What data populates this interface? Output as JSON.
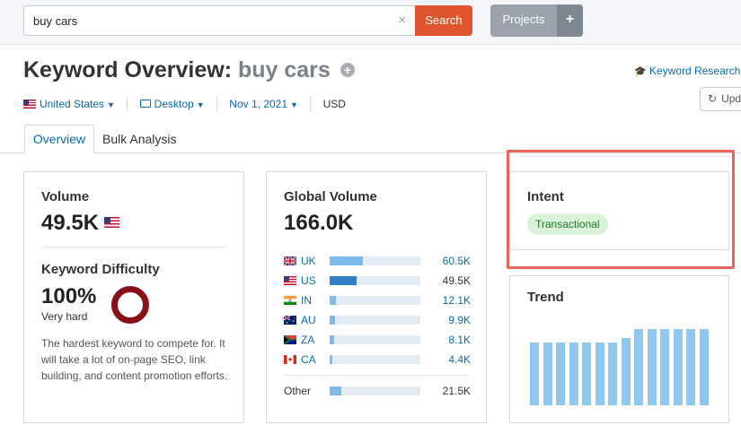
{
  "search": {
    "value": "buy cars",
    "placeholder": "",
    "clear_icon": "×",
    "button": "Search"
  },
  "projects": {
    "label": "Projects",
    "plus": "+"
  },
  "header": {
    "title": "Keyword Overview:",
    "keyword": "buy cars",
    "add_icon": "+",
    "kr_link": "Keyword Research",
    "update_label": "Upd"
  },
  "filters": {
    "country": "United States",
    "device": "Desktop",
    "date": "Nov 1, 2021",
    "currency": "USD"
  },
  "tabs": [
    {
      "label": "Overview",
      "active": true
    },
    {
      "label": "Bulk Analysis",
      "active": false
    }
  ],
  "volume": {
    "title": "Volume",
    "value": "49.5K"
  },
  "difficulty": {
    "title": "Keyword Difficulty",
    "value": "100%",
    "label": "Very hard",
    "level": 100,
    "color": "#8b0f16",
    "description": "The hardest keyword to compete for. It will take a lot of on-page SEO, link building, and content promotion efforts."
  },
  "global_volume": {
    "title": "Global Volume",
    "value": "166.0K",
    "countries": [
      {
        "code": "UK",
        "value": "60.5K",
        "share": 0.37
      },
      {
        "code": "US",
        "value": "49.5K",
        "share": 0.3
      },
      {
        "code": "IN",
        "value": "12.1K",
        "share": 0.07
      },
      {
        "code": "AU",
        "value": "9.9K",
        "share": 0.06
      },
      {
        "code": "ZA",
        "value": "8.1K",
        "share": 0.05
      },
      {
        "code": "CA",
        "value": "4.4K",
        "share": 0.03
      }
    ],
    "other": {
      "label": "Other",
      "value": "21.5K",
      "share": 0.13
    }
  },
  "intent": {
    "title": "Intent",
    "badge": "Transactional",
    "badge_color": "#d9f2d8"
  },
  "trend": {
    "title": "Trend",
    "values": [
      0.82,
      0.82,
      0.82,
      0.82,
      0.82,
      0.82,
      0.82,
      0.88,
      1.0,
      1.0,
      1.0,
      1.0,
      1.0,
      1.0
    ]
  }
}
